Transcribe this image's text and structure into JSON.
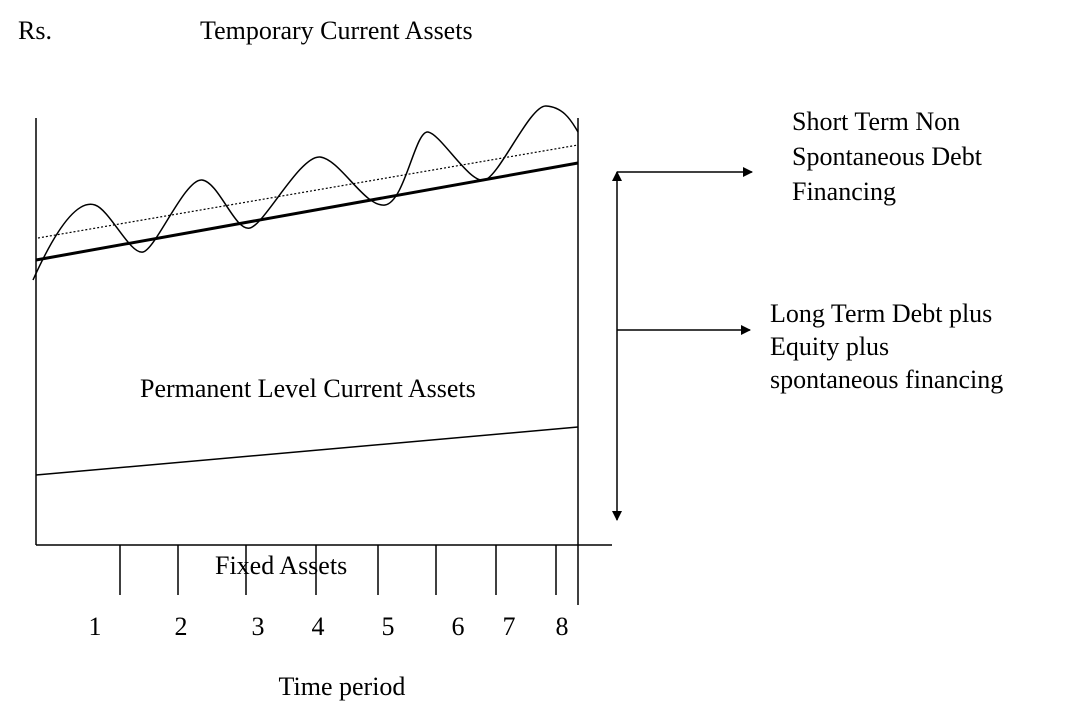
{
  "header": {
    "y_label": "Rs.",
    "title": "Temporary Current Assets"
  },
  "regions": {
    "permanent": "Permanent Level Current Assets",
    "fixed": "Fixed Assets"
  },
  "financing": {
    "short_term": [
      "Short Term Non",
      "Spontaneous Debt",
      "Financing"
    ],
    "long_term": [
      "Long Term Debt plus",
      "Equity plus",
      "spontaneous financing"
    ]
  },
  "x_axis": {
    "labels": [
      "1",
      "2",
      "3",
      "4",
      "5",
      "6",
      "7",
      "8"
    ],
    "title": "Time period"
  }
}
